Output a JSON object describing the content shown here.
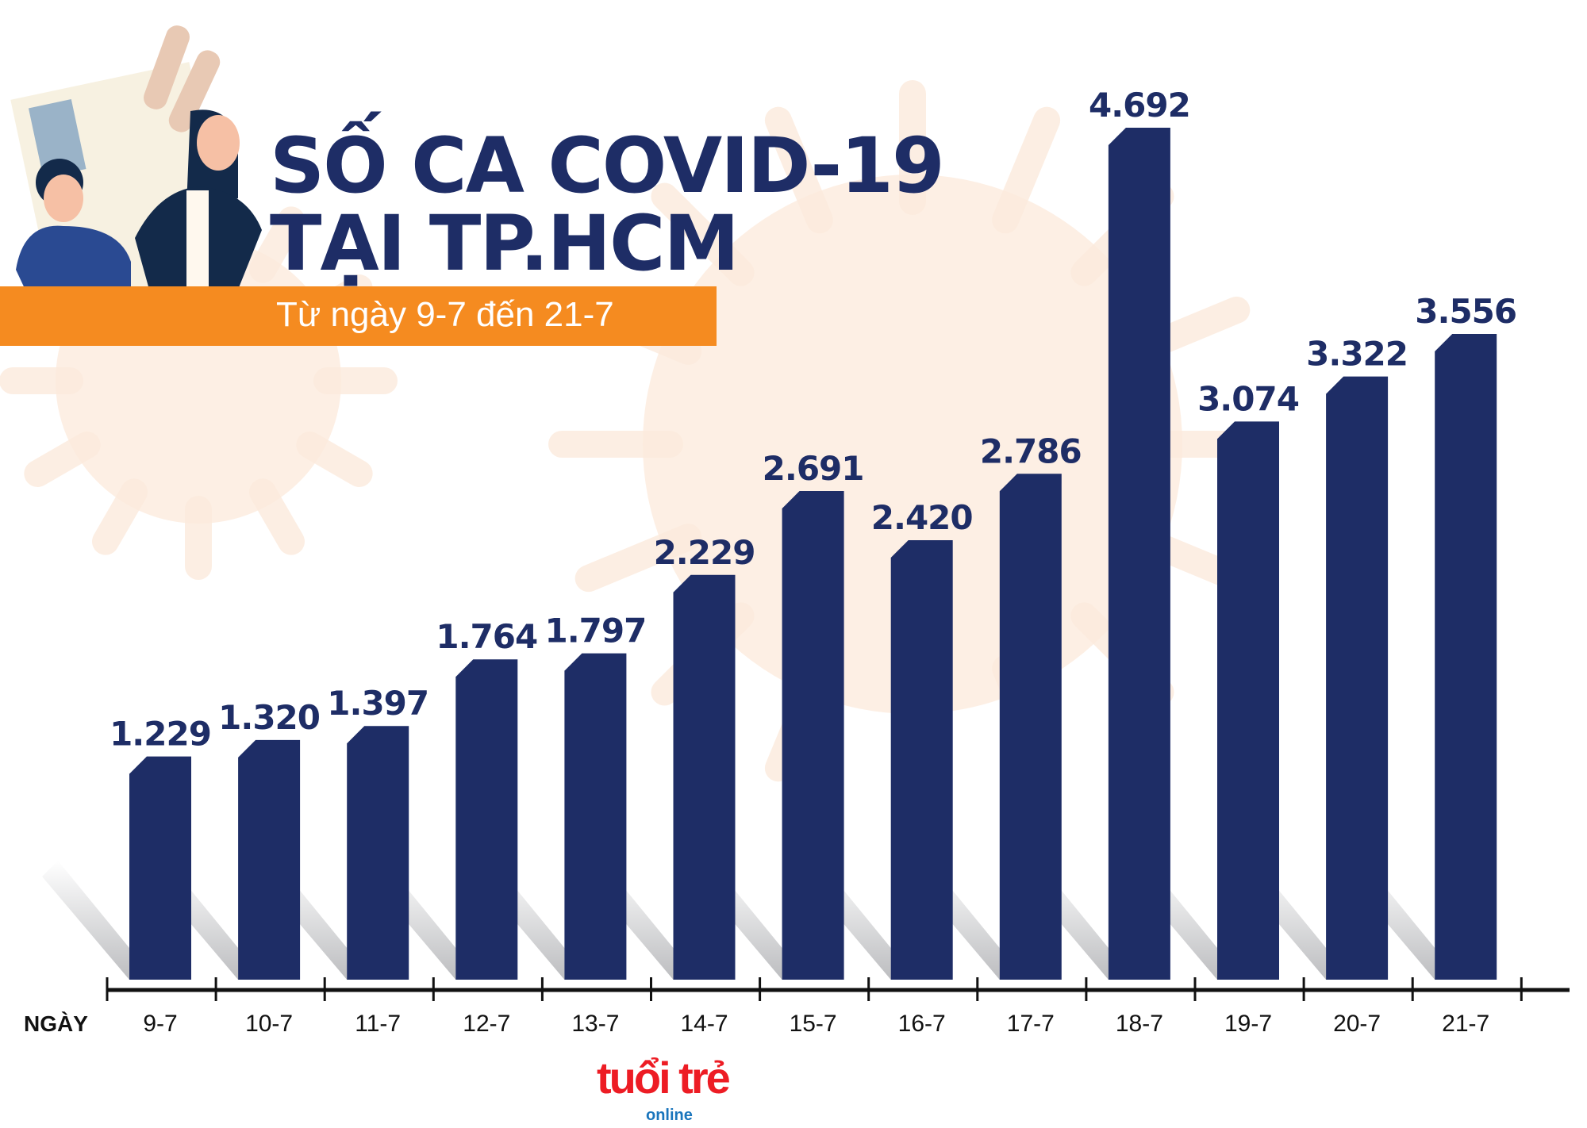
{
  "chart_data": {
    "type": "bar",
    "title": "SỐ CA COVID-19 TẠI TP.HCM",
    "subtitle": "Từ ngày 9-7 đến 21-7",
    "xlabel": "NGÀY",
    "ylabel": "",
    "categories": [
      "9-7",
      "10-7",
      "11-7",
      "12-7",
      "13-7",
      "14-7",
      "15-7",
      "16-7",
      "17-7",
      "18-7",
      "19-7",
      "20-7",
      "21-7"
    ],
    "values": [
      1229,
      1320,
      1397,
      1764,
      1797,
      2229,
      2691,
      2420,
      2786,
      4692,
      3074,
      3322,
      3556
    ],
    "value_labels": [
      "1.229",
      "1.320",
      "1.397",
      "1.764",
      "1.797",
      "2.229",
      "2.691",
      "2.420",
      "2.786",
      "4.692",
      "3.074",
      "3.322",
      "3.556"
    ],
    "ylim": [
      0,
      4692
    ],
    "grid": false,
    "legend": "none",
    "colors": {
      "bar": "#1e2d66",
      "banner": "#f58b20",
      "virus": "#fbe6d8",
      "logo": "#ed1c24",
      "logo_online": "#1a75bc"
    }
  },
  "logo": {
    "name": "tuổi trẻ",
    "sub": "online"
  }
}
